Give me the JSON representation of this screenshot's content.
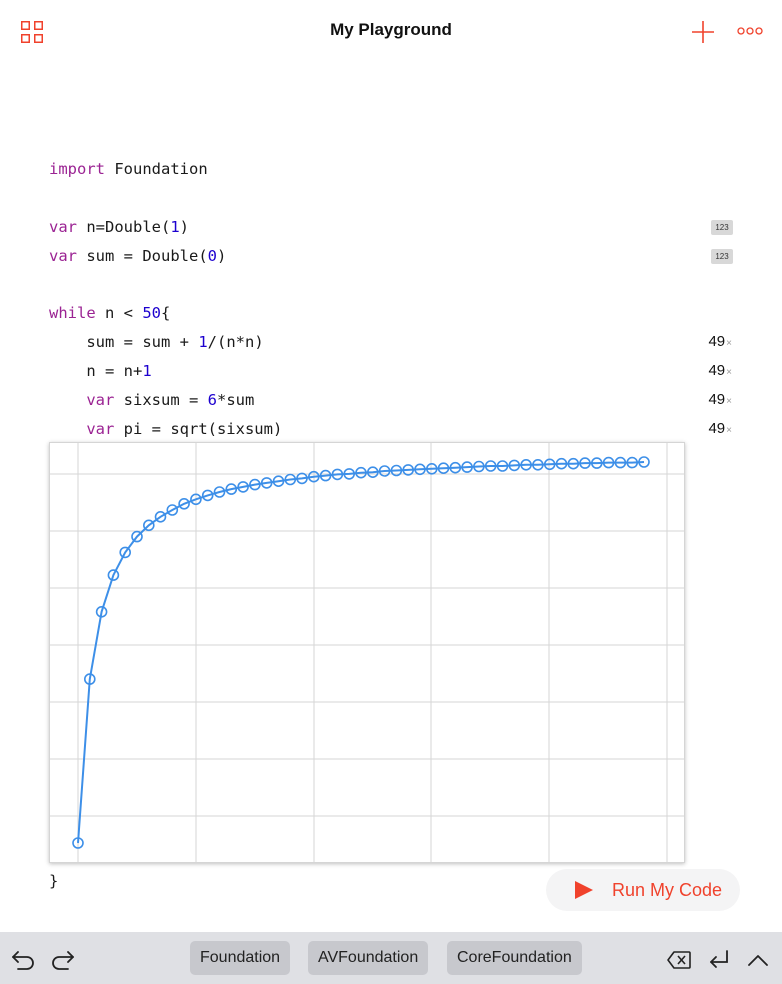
{
  "header": {
    "title": "My Playground"
  },
  "code": {
    "lines": [
      {
        "tokens": [
          {
            "t": "import",
            "c": "kw"
          },
          {
            "t": " Foundation",
            "c": "plain"
          }
        ]
      },
      {
        "tokens": [
          {
            "t": "var",
            "c": "kw"
          },
          {
            "t": " n=Double(",
            "c": "plain"
          },
          {
            "t": "1",
            "c": "num"
          },
          {
            "t": ")",
            "c": "plain"
          }
        ]
      },
      {
        "tokens": [
          {
            "t": "var",
            "c": "kw"
          },
          {
            "t": " sum = Double(",
            "c": "plain"
          },
          {
            "t": "0",
            "c": "num"
          },
          {
            "t": ")",
            "c": "plain"
          }
        ]
      },
      {
        "tokens": [
          {
            "t": "while",
            "c": "kw"
          },
          {
            "t": " n < ",
            "c": "plain"
          },
          {
            "t": "50",
            "c": "num"
          },
          {
            "t": "{",
            "c": "plain"
          }
        ]
      },
      {
        "tokens": [
          {
            "t": "    sum = sum + ",
            "c": "plain"
          },
          {
            "t": "1",
            "c": "num"
          },
          {
            "t": "/(n*n)",
            "c": "plain"
          }
        ]
      },
      {
        "tokens": [
          {
            "t": "    n = n+",
            "c": "plain"
          },
          {
            "t": "1",
            "c": "num"
          }
        ]
      },
      {
        "tokens": [
          {
            "t": "    ",
            "c": "plain"
          },
          {
            "t": "var",
            "c": "kw"
          },
          {
            "t": " sixsum = ",
            "c": "plain"
          },
          {
            "t": "6",
            "c": "num"
          },
          {
            "t": "*sum",
            "c": "plain"
          }
        ]
      },
      {
        "tokens": [
          {
            "t": "    ",
            "c": "plain"
          },
          {
            "t": "var",
            "c": "kw"
          },
          {
            "t": " pi = sqrt(sixsum)",
            "c": "plain"
          }
        ]
      },
      {
        "tokens": [
          {
            "t": "}",
            "c": "plain"
          }
        ]
      }
    ]
  },
  "results": {
    "badge_label": "123",
    "loop_count": "49",
    "times_symbol": "×"
  },
  "chart_data": {
    "type": "line",
    "series": [
      {
        "values": [
          2.449,
          2.739,
          2.858,
          2.923,
          2.963,
          2.991,
          3.011,
          3.026,
          3.038,
          3.049,
          3.057,
          3.064,
          3.07,
          3.075,
          3.079,
          3.083,
          3.086,
          3.089,
          3.092,
          3.094,
          3.097,
          3.099,
          3.101,
          3.102,
          3.104,
          3.105,
          3.107,
          3.108,
          3.109,
          3.11,
          3.111,
          3.112,
          3.113,
          3.114,
          3.115,
          3.116,
          3.116,
          3.117,
          3.118,
          3.118,
          3.119,
          3.12,
          3.12,
          3.121,
          3.121,
          3.122,
          3.122,
          3.122,
          3.123
        ]
      }
    ],
    "x_range": [
      1,
      49
    ],
    "y_range": [
      2.449,
      3.123
    ],
    "grid": true,
    "color": "#3d8fe8"
  },
  "run": {
    "label": "Run My Code"
  },
  "keyboard_bar": {
    "suggestions": [
      "Foundation",
      "AVFoundation",
      "CoreFoundation"
    ]
  },
  "colors": {
    "accent": "#f0422c",
    "keyword": "#9b2393",
    "number": "#1c00cf",
    "chart_line": "#3d8fe8"
  }
}
